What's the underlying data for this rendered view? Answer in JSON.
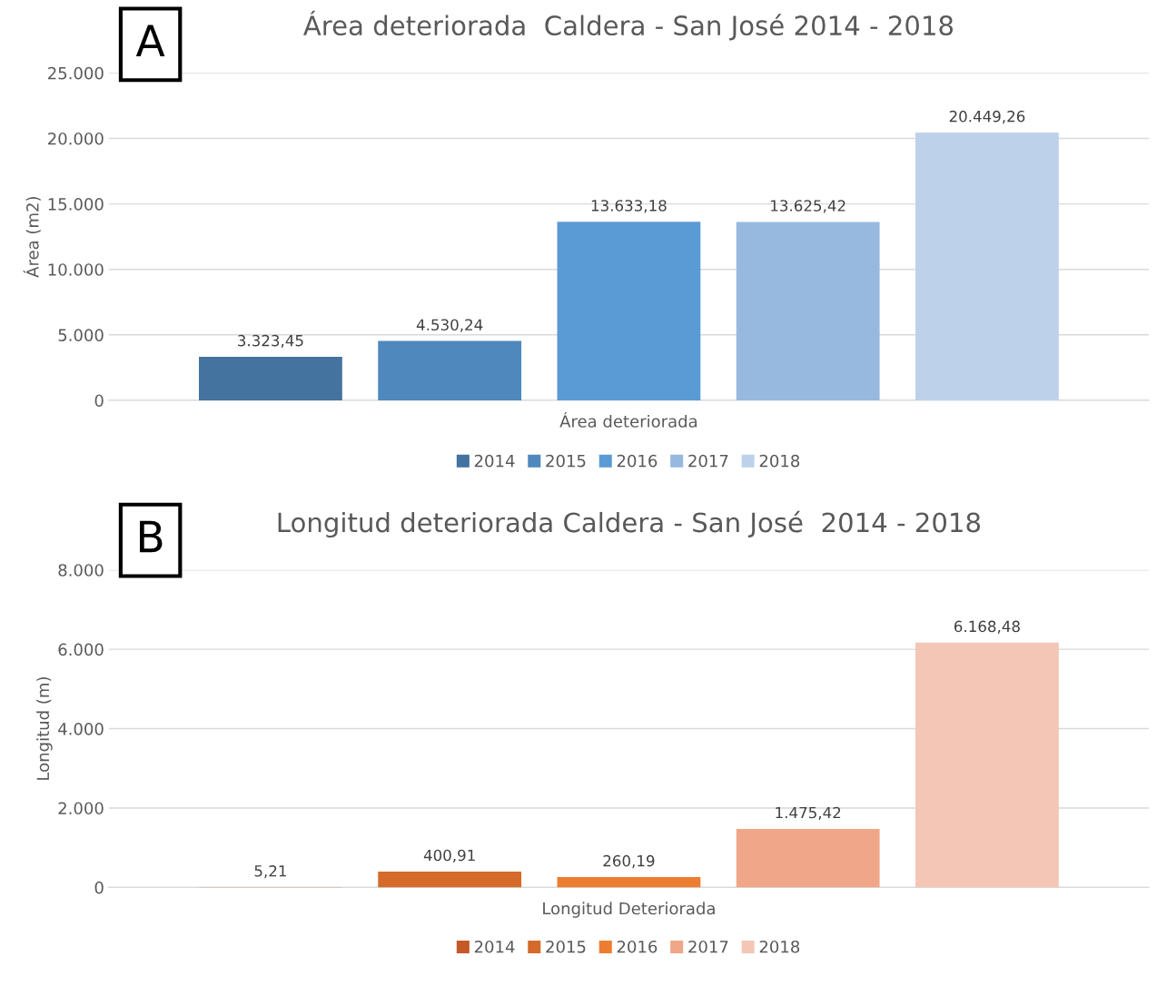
{
  "chart_data": [
    {
      "type": "bar",
      "title": "Área deteriorada  Caldera - San José 2014 - 2018",
      "ylabel": "Área (m2)",
      "xlabel": "Área deteriorada",
      "annotations": [
        "A"
      ],
      "categories": [
        null
      ],
      "series": [
        {
          "name": "2014",
          "color": "#44739f",
          "values": [
            3323.45
          ],
          "value_labels": [
            "3.323,45"
          ]
        },
        {
          "name": "2015",
          "color": "#4f88bd",
          "values": [
            4530.24
          ],
          "value_labels": [
            "4.530,24"
          ]
        },
        {
          "name": "2016",
          "color": "#5b9bd5",
          "values": [
            13633.18
          ],
          "value_labels": [
            "13.633,18"
          ]
        },
        {
          "name": "2017",
          "color": "#97b9e0",
          "values": [
            13625.42
          ],
          "value_labels": [
            "13.625,42"
          ]
        },
        {
          "name": "2018",
          "color": "#bdd1ea",
          "values": [
            20449.26
          ],
          "value_labels": [
            "20.449,26"
          ]
        }
      ],
      "ylim": [
        0,
        25000
      ],
      "yticks": [
        0,
        {
          "value": 5000,
          "label": "5.000"
        },
        {
          "value": 10000,
          "label": "10.000"
        },
        {
          "value": 15000,
          "label": "15.000"
        },
        {
          "value": 20000,
          "label": "20.000"
        },
        {
          "value": 25000,
          "label": "25.000"
        }
      ],
      "grid": "y",
      "legend": "bottom"
    },
    {
      "type": "bar",
      "title": "Longitud deteriorada Caldera - San José  2014 - 2018",
      "ylabel": "Longitud (m)",
      "xlabel": "Longitud Deteriorada",
      "annotations": [
        "B"
      ],
      "categories": [
        null
      ],
      "series": [
        {
          "name": "2014",
          "color": "#c55a28",
          "values": [
            5.21
          ],
          "value_labels": [
            "5,21"
          ]
        },
        {
          "name": "2015",
          "color": "#d46b2a",
          "values": [
            400.91
          ],
          "value_labels": [
            "400,91"
          ]
        },
        {
          "name": "2016",
          "color": "#ed7d31",
          "values": [
            260.19
          ],
          "value_labels": [
            "260,19"
          ]
        },
        {
          "name": "2017",
          "color": "#f0a688",
          "values": [
            1475.42
          ],
          "value_labels": [
            "1.475,42"
          ]
        },
        {
          "name": "2018",
          "color": "#f4c6b6",
          "values": [
            6168.48
          ],
          "value_labels": [
            "6.168,48"
          ]
        }
      ],
      "ylim": [
        0,
        8000
      ],
      "yticks": [
        0,
        {
          "value": 2000,
          "label": "2.000"
        },
        {
          "value": 4000,
          "label": "4.000"
        },
        {
          "value": 6000,
          "label": "6.000"
        },
        {
          "value": 8000,
          "label": "8.000"
        }
      ],
      "grid": "y",
      "legend": "bottom"
    }
  ]
}
